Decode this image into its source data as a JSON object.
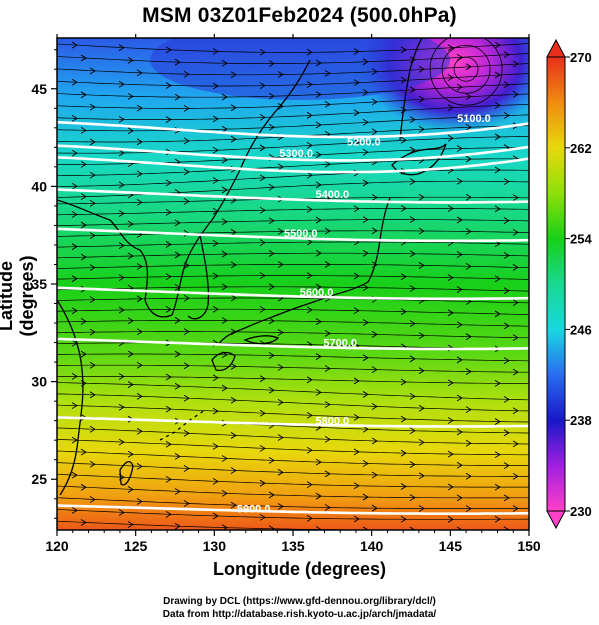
{
  "title": "MSM 03Z01Feb2024 (500.0hPa)",
  "xlabel": "Longitude (degrees)",
  "ylabel": "Latitude (degrees)",
  "credits": {
    "line1": "Drawing by DCL (https://www.gfd-dennou.org/library/dcl/)",
    "line2": "Data from http://database.rish.kyoto-u.ac.jp/arch/jmadata/"
  },
  "chart_data": {
    "type": "heatmap",
    "field": "temperature (shaded) with geopotential height contours and wind streamlines",
    "x_range": [
      120,
      150
    ],
    "y_range": [
      22.4,
      47.6
    ],
    "x_ticks": [
      120,
      125,
      130,
      135,
      140,
      145,
      150
    ],
    "y_ticks": [
      25,
      30,
      35,
      40,
      45
    ],
    "colorbar": {
      "min": 230,
      "max": 270,
      "ticks": [
        230,
        238,
        246,
        254,
        262,
        270
      ],
      "colors": [
        "#ff40c8",
        "#a020e0",
        "#1818c8",
        "#2a6cf0",
        "#18d8e0",
        "#18d890",
        "#18d018",
        "#8ee00a",
        "#e8d80c",
        "#f08c10",
        "#e8301c"
      ]
    },
    "contours": [
      {
        "label": "5100.0",
        "lon": 146.5,
        "lat": 43.5
      },
      {
        "label": "5200.0",
        "lon": 139.5,
        "lat": 42.3
      },
      {
        "label": "5300.0",
        "lon": 135.2,
        "lat": 41.7
      },
      {
        "label": "5400.0",
        "lon": 137.5,
        "lat": 39.6
      },
      {
        "label": "5500.0",
        "lon": 135.5,
        "lat": 37.6
      },
      {
        "label": "5600.0",
        "lon": 136.5,
        "lat": 34.6
      },
      {
        "label": "5700.0",
        "lon": 138.0,
        "lat": 32.0
      },
      {
        "label": "5800.0",
        "lon": 137.5,
        "lat": 28.0
      },
      {
        "label": "5900.0",
        "lon": 132.5,
        "lat": 23.5
      }
    ],
    "wind": "westerly flow across domain, cyclonic circulation near 146E 46N"
  }
}
